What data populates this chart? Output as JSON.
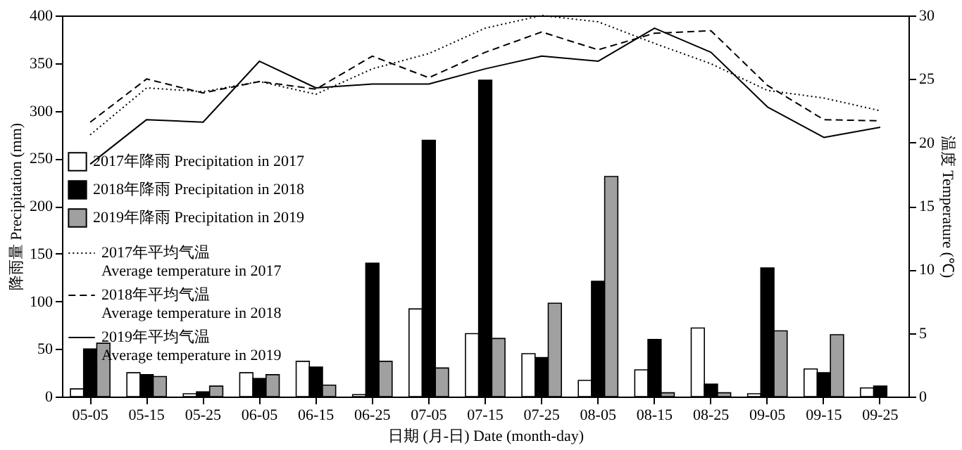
{
  "chart_data": {
    "type": "bar",
    "xlabel": "日期 (月-日) Date (month-day)",
    "ylabel": "降雨量 Precipitation (mm)",
    "y2label": "温度 Temperature (℃)",
    "categories": [
      "05-05",
      "05-15",
      "05-25",
      "06-05",
      "06-15",
      "06-25",
      "07-05",
      "07-15",
      "07-25",
      "08-05",
      "08-15",
      "08-25",
      "09-05",
      "09-15",
      "09-25"
    ],
    "ylim": [
      0,
      400
    ],
    "yticks": [
      0,
      50,
      100,
      150,
      200,
      250,
      300,
      350,
      400
    ],
    "y2lim": [
      0,
      30
    ],
    "y2ticks": [
      0,
      5,
      10,
      15,
      20,
      25,
      30
    ],
    "grid": false,
    "legend": "left",
    "series": [
      {
        "name": "2017年降雨 Precipitation in 2017",
        "color": "#ffffff",
        "values": [
          8,
          25,
          3,
          25,
          37,
          2,
          92,
          66,
          45,
          17,
          28,
          72,
          3,
          29,
          9
        ]
      },
      {
        "name": "2018年降雨 Precipitation in 2018",
        "color": "#000000",
        "values": [
          50,
          23,
          5,
          19,
          31,
          140,
          269,
          332,
          41,
          121,
          60,
          13,
          135,
          25,
          11
        ]
      },
      {
        "name": "2019年降雨 Precipitation in 2019",
        "color": "#a0a0a0",
        "values": [
          56,
          21,
          11,
          23,
          12,
          37,
          30,
          61,
          98,
          231,
          4,
          4,
          69,
          65,
          0
        ]
      },
      {
        "name": "2017年平均气温\nAverage temperature in 2017",
        "type": "line",
        "axis": "y2",
        "line_style": "dotted",
        "color": "#000000",
        "values": [
          20.6,
          24.3,
          24.0,
          24.8,
          23.8,
          25.8,
          27.0,
          29.0,
          30.0,
          29.5,
          27.8,
          26.2,
          24.1,
          23.5,
          22.5
        ]
      },
      {
        "name": "2018年平均气温\nAverage temperature in 2018",
        "type": "line",
        "axis": "y2",
        "line_style": "dashed",
        "color": "#000000",
        "values": [
          21.6,
          25.0,
          23.9,
          24.8,
          24.2,
          26.8,
          25.1,
          27.1,
          28.7,
          27.3,
          28.6,
          28.8,
          24.5,
          21.8,
          21.7
        ]
      },
      {
        "name": "2019年平均气温\nAverage temperature in 2019",
        "type": "line",
        "axis": "y2",
        "line_style": "solid",
        "color": "#000000",
        "values": [
          18.3,
          21.8,
          21.6,
          26.4,
          24.3,
          24.6,
          24.6,
          25.8,
          26.8,
          26.4,
          29.0,
          27.1,
          22.8,
          20.4,
          21.2
        ]
      }
    ]
  }
}
